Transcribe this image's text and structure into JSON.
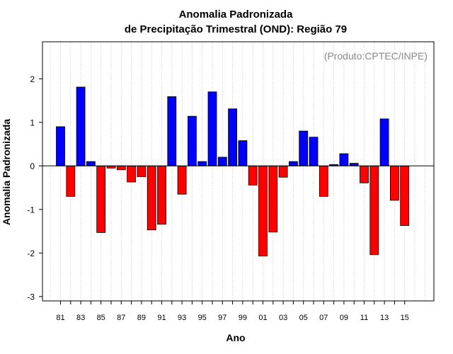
{
  "chart_data": {
    "type": "bar",
    "title": [
      "Anomalia Padronizada",
      "de Precipitação Trimestral (OND): Região 79"
    ],
    "xlabel": "Ano",
    "ylabel": "Anomalia Padronizada",
    "source_note": "(Produto:CPTEC/INPE)",
    "ylim": [
      -3.1,
      2.85
    ],
    "yticks": [
      2,
      1,
      0,
      -1,
      -2,
      -3
    ],
    "ytick_labels": [
      "2",
      "1",
      "0",
      "-1",
      "-2",
      "-3"
    ],
    "categories": [
      "81",
      "82",
      "83",
      "84",
      "85",
      "86",
      "87",
      "88",
      "89",
      "90",
      "91",
      "92",
      "93",
      "94",
      "95",
      "96",
      "97",
      "98",
      "99",
      "00",
      "01",
      "02",
      "03",
      "04",
      "05",
      "06",
      "07",
      "08",
      "09",
      "10",
      "11",
      "12",
      "13",
      "14",
      "15"
    ],
    "xtick_labels": [
      "81",
      "83",
      "85",
      "87",
      "89",
      "91",
      "93",
      "95",
      "97",
      "99",
      "01",
      "03",
      "05",
      "07",
      "09",
      "11",
      "13",
      "15"
    ],
    "values": [
      0.9,
      -0.7,
      1.81,
      0.1,
      -1.53,
      -0.05,
      -0.09,
      -0.37,
      -0.25,
      -1.47,
      -1.34,
      1.59,
      -0.65,
      1.14,
      0.1,
      1.7,
      0.2,
      1.31,
      0.58,
      -0.44,
      -2.07,
      -1.52,
      -0.26,
      0.1,
      0.8,
      0.66,
      -0.7,
      0.03,
      0.28,
      0.06,
      -0.39,
      -2.04,
      1.08,
      -0.79,
      -1.37
    ],
    "positive_color": "#0000ff",
    "negative_color": "#ff0000",
    "grid": true
  }
}
